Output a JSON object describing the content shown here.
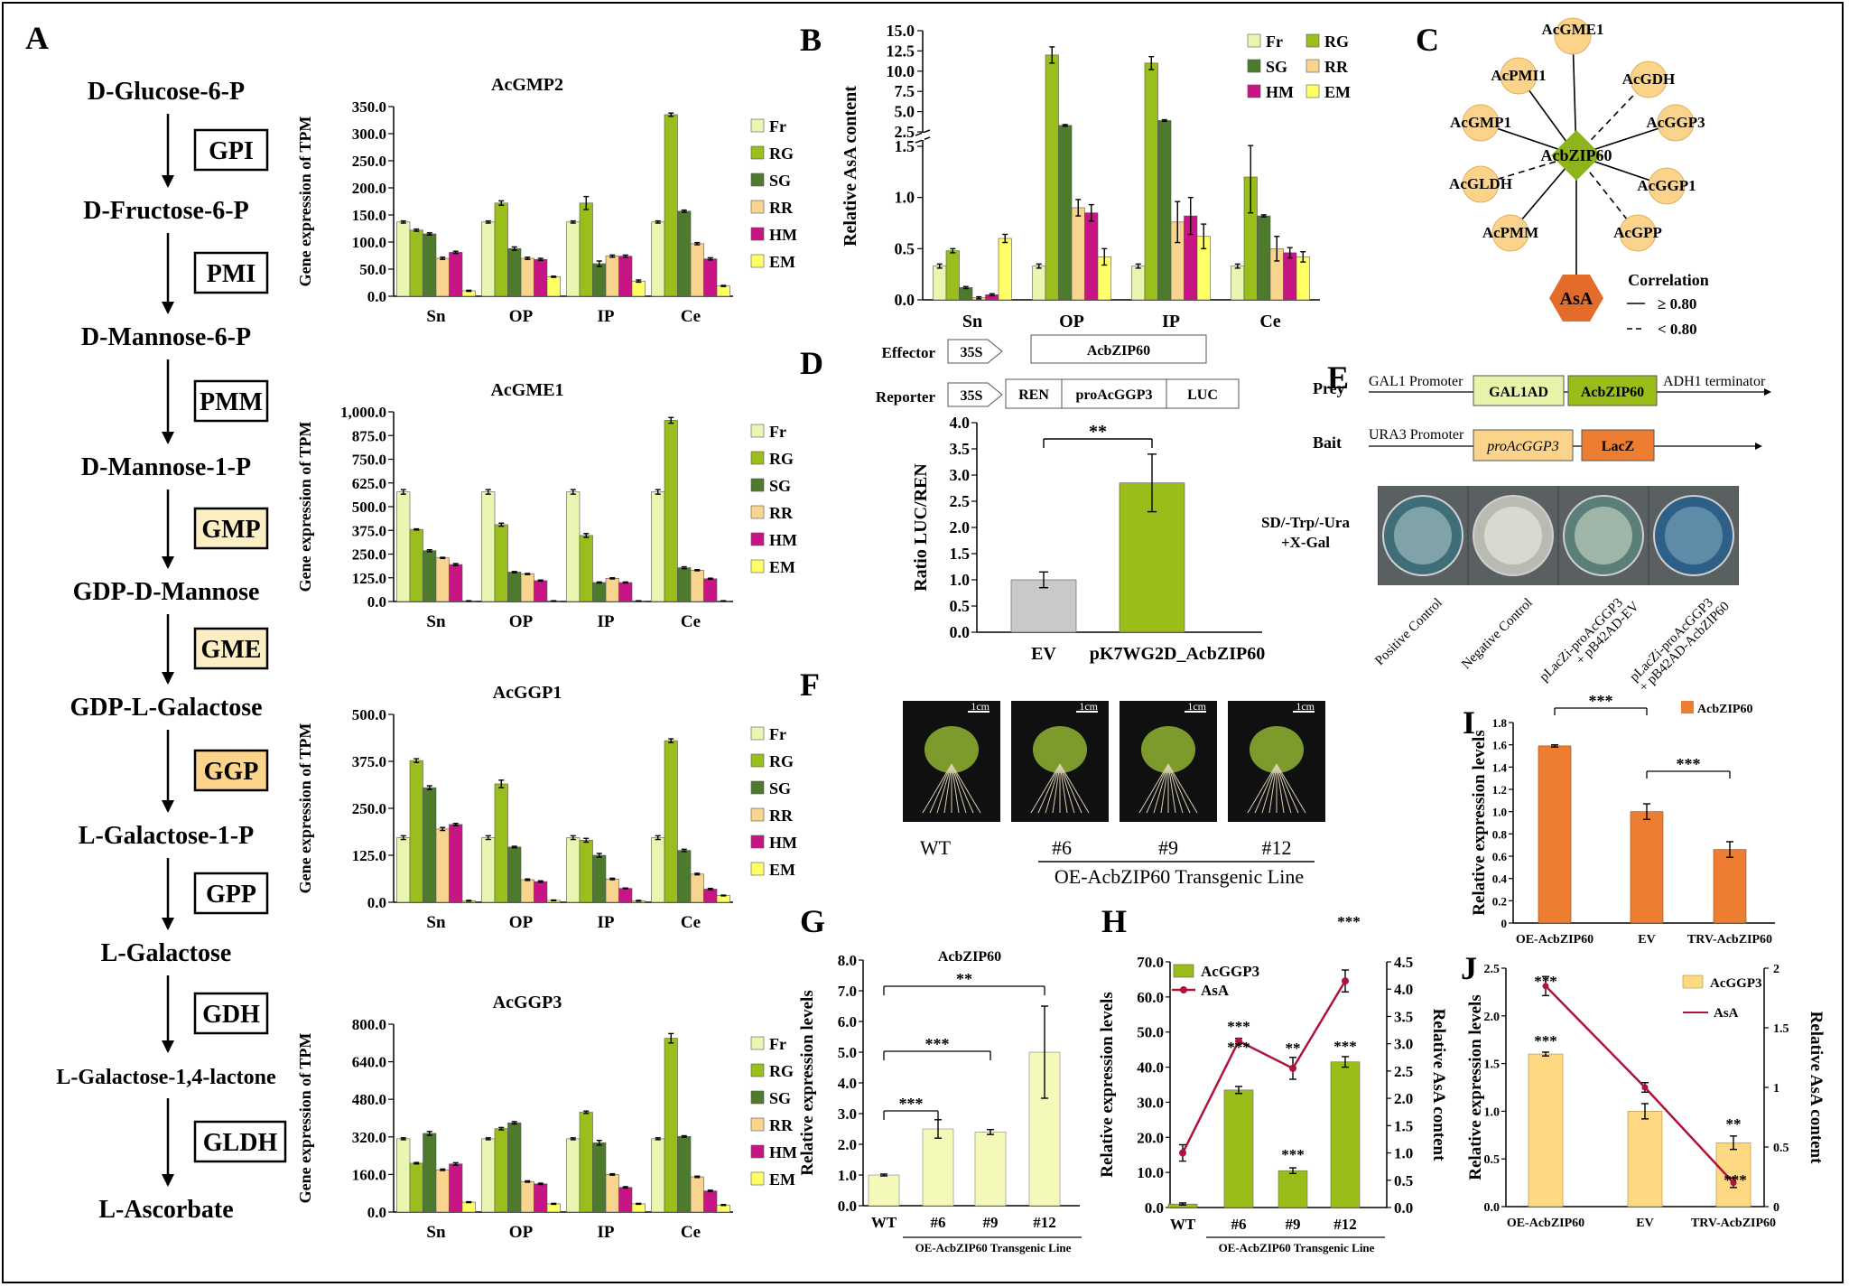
{
  "panel_letters": [
    "A",
    "B",
    "C",
    "D",
    "E",
    "F",
    "G",
    "H",
    "I",
    "J"
  ],
  "colors": {
    "Fr": "#E9F5B0",
    "RG": "#9ABF1C",
    "SG": "#4E7A2E",
    "RR": "#F8D48E",
    "HM": "#C71585",
    "EM": "#FFFF66",
    "orange": "#ED7D31",
    "gray": "#C9C9C9",
    "lime": "#9ABD1A",
    "pale": "#F4F8B9",
    "yellowbar": "#FDD983",
    "node": "#FBD38B",
    "diamond": "#8DB51B",
    "asa": "#E46C2A",
    "asaLine": "#B0133A"
  },
  "pathway": {
    "metabolites": [
      "D-Glucose-6-P",
      "D-Fructose-6-P",
      "D-Mannose-6-P",
      "D-Mannose-1-P",
      "GDP-D-Mannose",
      "GDP-L-Galactose",
      "L-Galactose-1-P",
      "L-Galactose",
      "L-Galactose-1,4-lactone",
      "L-Ascorbate"
    ],
    "enzymes": [
      "GPI",
      "PMI",
      "PMM",
      "GMP",
      "GME",
      "GGP",
      "GPP",
      "GDH",
      "GLDH"
    ]
  },
  "chart_data": [
    {
      "id": "A1",
      "type": "bar",
      "title": "AcGMP2",
      "ylabel": "Gene expression of TPM",
      "categories": [
        "Sn",
        "OP",
        "IP",
        "Ce"
      ],
      "yticks": [
        "0.0",
        "50.0",
        "100.0",
        "150.0",
        "200.0",
        "250.0",
        "300.0",
        "350.0"
      ],
      "ylim": [
        0,
        350
      ],
      "series": [
        {
          "name": "Fr",
          "values": [
            137,
            137,
            137,
            137
          ]
        },
        {
          "name": "RG",
          "values": [
            122,
            172,
            172,
            335
          ]
        },
        {
          "name": "SG",
          "values": [
            115,
            88,
            60,
            157
          ]
        },
        {
          "name": "RR",
          "values": [
            70,
            70,
            74,
            97
          ]
        },
        {
          "name": "HM",
          "values": [
            81,
            68,
            74,
            69
          ]
        },
        {
          "name": "EM",
          "values": [
            10,
            36,
            28,
            19
          ]
        }
      ],
      "errors": [
        [
          2,
          2,
          2,
          2
        ],
        [
          2,
          4,
          12,
          3
        ],
        [
          2,
          3,
          5,
          2
        ],
        [
          2,
          2,
          2,
          2
        ],
        [
          2,
          2,
          2,
          2
        ],
        [
          1,
          1,
          2,
          1
        ]
      ]
    },
    {
      "id": "A2",
      "type": "bar",
      "title": "AcGME1",
      "ylabel": "Gene expression of TPM",
      "categories": [
        "Sn",
        "OP",
        "IP",
        "Ce"
      ],
      "yticks": [
        "0.0",
        "125.0",
        "250.0",
        "375.0",
        "500.0",
        "625.0",
        "750.0",
        "875.0",
        "1,000.0"
      ],
      "ylim": [
        0,
        1000
      ],
      "series": [
        {
          "name": "Fr",
          "values": [
            578,
            578,
            578,
            578
          ]
        },
        {
          "name": "RG",
          "values": [
            380,
            405,
            348,
            955
          ]
        },
        {
          "name": "SG",
          "values": [
            268,
            155,
            100,
            178
          ]
        },
        {
          "name": "RR",
          "values": [
            230,
            145,
            122,
            165
          ]
        },
        {
          "name": "HM",
          "values": [
            195,
            110,
            100,
            120
          ]
        },
        {
          "name": "EM",
          "values": [
            3,
            3,
            3,
            3
          ]
        }
      ],
      "errors": [
        [
          12,
          12,
          12,
          12
        ],
        [
          3,
          8,
          10,
          15
        ],
        [
          5,
          3,
          3,
          5
        ],
        [
          3,
          3,
          3,
          3
        ],
        [
          5,
          3,
          3,
          3
        ],
        [
          1,
          1,
          1,
          1
        ]
      ]
    },
    {
      "id": "A3",
      "type": "bar",
      "title": "AcGGP1",
      "ylabel": "Gene expression of TPM",
      "categories": [
        "Sn",
        "OP",
        "IP",
        "Ce"
      ],
      "yticks": [
        "0.0",
        "125.0",
        "250.0",
        "375.0",
        "500.0"
      ],
      "ylim": [
        0,
        500
      ],
      "series": [
        {
          "name": "Fr",
          "values": [
            172,
            172,
            172,
            172
          ]
        },
        {
          "name": "RG",
          "values": [
            377,
            315,
            165,
            430
          ]
        },
        {
          "name": "SG",
          "values": [
            305,
            147,
            125,
            138
          ]
        },
        {
          "name": "RR",
          "values": [
            195,
            60,
            62,
            75
          ]
        },
        {
          "name": "HM",
          "values": [
            207,
            55,
            37,
            35
          ]
        },
        {
          "name": "EM",
          "values": [
            4,
            5,
            4,
            18
          ]
        }
      ],
      "errors": [
        [
          5,
          5,
          5,
          5
        ],
        [
          5,
          10,
          5,
          5
        ],
        [
          5,
          2,
          5,
          3
        ],
        [
          4,
          2,
          2,
          2
        ],
        [
          3,
          2,
          1,
          2
        ],
        [
          1,
          1,
          1,
          1
        ]
      ]
    },
    {
      "id": "A4",
      "type": "bar",
      "title": "AcGGP3",
      "ylabel": "Gene expression of TPM",
      "categories": [
        "Sn",
        "OP",
        "IP",
        "Ce"
      ],
      "yticks": [
        "0.0",
        "160.0",
        "320.0",
        "480.0",
        "640.0",
        "800.0"
      ],
      "ylim": [
        0,
        800
      ],
      "series": [
        {
          "name": "Fr",
          "values": [
            312,
            312,
            312,
            312
          ]
        },
        {
          "name": "RG",
          "values": [
            208,
            355,
            425,
            740
          ]
        },
        {
          "name": "SG",
          "values": [
            335,
            380,
            295,
            322
          ]
        },
        {
          "name": "RR",
          "values": [
            180,
            130,
            160,
            150
          ]
        },
        {
          "name": "HM",
          "values": [
            205,
            120,
            105,
            90
          ]
        },
        {
          "name": "EM",
          "values": [
            42,
            35,
            35,
            30
          ]
        }
      ],
      "errors": [
        [
          4,
          4,
          4,
          4
        ],
        [
          3,
          5,
          5,
          20
        ],
        [
          8,
          5,
          10,
          3
        ],
        [
          3,
          3,
          3,
          3
        ],
        [
          5,
          3,
          3,
          3
        ],
        [
          2,
          2,
          2,
          2
        ]
      ]
    },
    {
      "id": "B",
      "type": "bar",
      "ylabel": "Relative AsA content",
      "categories": [
        "Sn",
        "OP",
        "IP",
        "Ce"
      ],
      "yticks_low": [
        "0.0",
        "0.5",
        "1.0",
        "1.5"
      ],
      "yticks_high": [
        "2.5",
        "5.0",
        "7.5",
        "10.0",
        "12.5",
        "15.0"
      ],
      "series": [
        {
          "name": "Fr",
          "values": [
            0.33,
            0.33,
            0.33,
            0.33
          ]
        },
        {
          "name": "RG",
          "values": [
            0.48,
            12.0,
            11.0,
            1.2
          ]
        },
        {
          "name": "SG",
          "values": [
            0.12,
            3.3,
            3.9,
            0.82
          ]
        },
        {
          "name": "RR",
          "values": [
            0.02,
            0.9,
            0.76,
            0.5
          ]
        },
        {
          "name": "HM",
          "values": [
            0.05,
            0.85,
            0.82,
            0.46
          ]
        },
        {
          "name": "EM",
          "values": [
            0.6,
            0.42,
            0.62,
            0.42
          ]
        }
      ],
      "errors": [
        [
          0.02,
          0.02,
          0.02,
          0.02
        ],
        [
          0.02,
          1.0,
          0.8,
          0.35
        ],
        [
          0.01,
          0.1,
          0.1,
          0.01
        ],
        [
          0.01,
          0.08,
          0.2,
          0.12
        ],
        [
          0.01,
          0.08,
          0.18,
          0.05
        ],
        [
          0.04,
          0.08,
          0.12,
          0.05
        ]
      ]
    },
    {
      "id": "D",
      "type": "bar",
      "ylabel": "Ratio LUC/REN",
      "categories": [
        "EV",
        "pK7WG2D_AcbZIP60"
      ],
      "values": [
        1.0,
        2.85
      ],
      "errors": [
        0.15,
        0.55
      ],
      "yticks": [
        "0.0",
        "0.5",
        "1.0",
        "1.5",
        "2.0",
        "2.5",
        "3.0",
        "3.5",
        "4.0"
      ],
      "ylim": [
        0,
        4
      ],
      "significance": "**"
    },
    {
      "id": "G",
      "type": "bar",
      "title": "AcbZIP60",
      "ylabel": "Relative expression levels",
      "categories": [
        "WT",
        "#6",
        "#9",
        "#12"
      ],
      "values": [
        1.0,
        2.5,
        2.4,
        5.0
      ],
      "errors": [
        0.03,
        0.3,
        0.08,
        1.5
      ],
      "yticks": [
        "0.0",
        "1.0",
        "2.0",
        "3.0",
        "4.0",
        "5.0",
        "6.0",
        "7.0",
        "8.0"
      ],
      "ylim": [
        0,
        8
      ],
      "significance": [
        "***",
        "***",
        "**"
      ],
      "xgroup_label": "OE-AcbZIP60 Transgenic Line"
    },
    {
      "id": "H",
      "type": "bar+line",
      "ylabel": "Relative expression levels",
      "y2label": "Relative AsA content",
      "categories": [
        "WT",
        "#6",
        "#9",
        "#12"
      ],
      "series": [
        {
          "name": "AcGGP3",
          "values": [
            1,
            33.5,
            10.5,
            41.5
          ],
          "errors": [
            0.3,
            1,
            0.8,
            1.5
          ]
        },
        {
          "name": "AsA",
          "values": [
            1.0,
            3.05,
            2.55,
            4.15
          ],
          "errors": [
            0.15,
            0.05,
            0.2,
            0.2
          ]
        }
      ],
      "yticks": [
        "0.0",
        "10.0",
        "20.0",
        "30.0",
        "40.0",
        "50.0",
        "60.0",
        "70.0"
      ],
      "y2ticks": [
        "0.0",
        "0.5",
        "1.0",
        "1.5",
        "2.0",
        "2.5",
        "3.0",
        "3.5",
        "4.0",
        "4.5"
      ],
      "ylim": [
        0,
        70
      ],
      "y2lim": [
        0,
        4.5
      ],
      "significance_bar": [
        "***",
        "***",
        "***"
      ],
      "significance_line": [
        "***",
        "**",
        "***"
      ],
      "xgroup_label": "OE-AcbZIP60 Transgenic Line"
    },
    {
      "id": "I",
      "type": "bar",
      "ylabel": "Relative expression levels",
      "categories": [
        "OE-AcbZIP60",
        "EV",
        "TRV-AcbZIP60"
      ],
      "series": [
        {
          "name": "AcbZIP60",
          "values": [
            1.59,
            1.0,
            0.66
          ]
        }
      ],
      "errors": [
        0.01,
        0.07,
        0.07
      ],
      "yticks": [
        "0",
        "0.2",
        "0.4",
        "0.6",
        "0.8",
        "1.0",
        "1.2",
        "1.4",
        "1.6",
        "1.8"
      ],
      "ylim": [
        0,
        1.8
      ],
      "significance": [
        "***",
        "***"
      ]
    },
    {
      "id": "J",
      "type": "bar+line",
      "ylabel": "Relative expression levels",
      "y2label": "Relative AsA content",
      "categories": [
        "OE-AcbZIP60",
        "EV",
        "TRV-AcbZIP60"
      ],
      "series": [
        {
          "name": "AcGGP3",
          "values": [
            1.6,
            1.0,
            0.67
          ],
          "errors": [
            0.02,
            0.08,
            0.07
          ]
        },
        {
          "name": "AsA",
          "values": [
            1.85,
            1.0,
            0.2
          ],
          "errors": [
            0.08,
            0.04,
            0.04
          ]
        }
      ],
      "yticks": [
        "0.0",
        "0.5",
        "1.0",
        "1.5",
        "2.0",
        "2.5"
      ],
      "y2ticks": [
        "0",
        "0.5",
        "1",
        "1.5",
        "2"
      ],
      "ylim": [
        0,
        2.5
      ],
      "y2lim": [
        0,
        2
      ],
      "significance_bar": [
        "***",
        "**"
      ],
      "significance_line": [
        "***",
        "***"
      ]
    }
  ],
  "network": {
    "hub": "AcbZIP60",
    "target": "AsA",
    "genes": [
      "AcGME1",
      "AcGDH",
      "AcGGP3",
      "AcGGP1",
      "AcGPP",
      "AcPMM",
      "AcGLDH",
      "AcGMP1",
      "AcPMI1"
    ],
    "legend_title": "Correlation",
    "legend_solid": "≥  0.80",
    "legend_dashed": "<  0.80"
  },
  "luc_construct": {
    "effector": "Effector",
    "reporter": "Reporter",
    "p35s": "35S",
    "gene": "AcbZIP60",
    "ren": "REN",
    "promoter": "proAcGGP3",
    "luc": "LUC"
  },
  "y1h": {
    "prey": "Prey",
    "bait": "Bait",
    "gal1": "GAL1 Promoter",
    "gal1ad": "GAL1AD",
    "gene": "AcbZIP60",
    "adh1": "ADH1 terminator",
    "ura3": "URA3 Promoter",
    "promoter": "proAcGGP3",
    "lacz": "LacZ",
    "medium1": "SD/-Trp/-Ura",
    "medium2": "+X-Gal",
    "plates": [
      "Positive Control",
      "Negative Control"
    ],
    "plate3": [
      "pLacZi-proAcGGP3",
      "+ pB42AD-EV"
    ],
    "plate4": [
      "pLacZi-proAcGGP3",
      "+ pB42AD-AcbZIP60"
    ]
  },
  "plants": {
    "labels": [
      "WT",
      "#6",
      "#9",
      "#12"
    ],
    "scale": "1cm",
    "group_label": "OE-AcbZIP60 Transgenic Line"
  }
}
